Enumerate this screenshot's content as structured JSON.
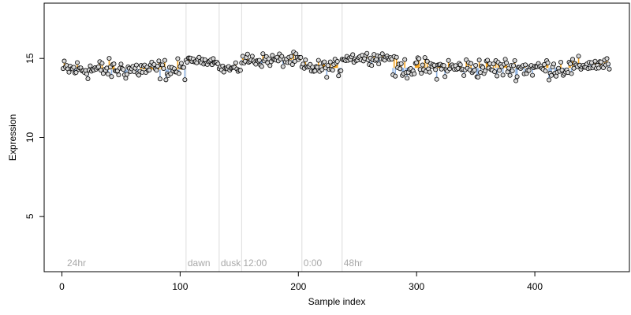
{
  "chart_data": {
    "type": "scatter",
    "title": "",
    "xlabel": "Sample index",
    "ylabel": "Expression",
    "xlim": [
      -15,
      480
    ],
    "ylim": [
      1.5,
      18.5
    ],
    "xticks": [
      0,
      100,
      200,
      300,
      400
    ],
    "yticks": [
      5,
      10,
      15
    ],
    "grid": false,
    "baseline_colors": {
      "above": "#f5a623",
      "below": "#8fb3e3"
    },
    "point_fill": "#d9d9d9",
    "point_stroke": "#000000",
    "annotations": [
      {
        "label": "24hr",
        "x": 3
      },
      {
        "label": "dawn",
        "x": 105
      },
      {
        "label": "dusk",
        "x": 133
      },
      {
        "label": "12:00",
        "x": 152
      },
      {
        "label": "0:00",
        "x": 203
      },
      {
        "label": "48hr",
        "x": 237
      }
    ],
    "segments": [
      {
        "x_start": 0,
        "x_end": 105,
        "mean": 14.3,
        "amplitude": 0.45
      },
      {
        "x_start": 105,
        "x_end": 133,
        "mean": 14.85,
        "amplitude": 0.15
      },
      {
        "x_start": 133,
        "x_end": 152,
        "mean": 14.35,
        "amplitude": 0.2
      },
      {
        "x_start": 152,
        "x_end": 203,
        "mean": 14.9,
        "amplitude": 0.3
      },
      {
        "x_start": 203,
        "x_end": 237,
        "mean": 14.4,
        "amplitude": 0.35
      },
      {
        "x_start": 237,
        "x_end": 280,
        "mean": 15.05,
        "amplitude": 0.25
      },
      {
        "x_start": 280,
        "x_end": 440,
        "mean": 14.4,
        "amplitude": 0.45
      },
      {
        "x_start": 440,
        "x_end": 463,
        "mean": 14.6,
        "amplitude": 0.3
      }
    ],
    "n_points": 463
  }
}
